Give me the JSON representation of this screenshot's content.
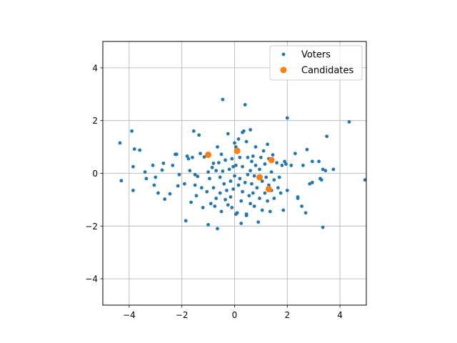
{
  "chart_data": {
    "type": "scatter",
    "xlim": [
      -5,
      5
    ],
    "ylim": [
      -5,
      5
    ],
    "x_ticks": [
      -4,
      -2,
      0,
      2,
      4
    ],
    "y_ticks": [
      -4,
      -2,
      0,
      2,
      4
    ],
    "x_tick_labels": [
      "−4",
      "−2",
      "0",
      "2",
      "4"
    ],
    "y_tick_labels": [
      "−4",
      "−2",
      "0",
      "2",
      "4"
    ],
    "grid": true,
    "legend_position": "top-right",
    "series": [
      {
        "name": "Voters",
        "color": "#1f77b4",
        "marker": "small-circle",
        "points": [
          [
            -4.35,
            1.15
          ],
          [
            -4.3,
            -0.28
          ],
          [
            -3.9,
            1.6
          ],
          [
            -3.85,
            0.25
          ],
          [
            -3.85,
            -0.65
          ],
          [
            -3.8,
            0.92
          ],
          [
            -3.6,
            0.88
          ],
          [
            -3.4,
            0.05
          ],
          [
            -3.35,
            -0.2
          ],
          [
            -3.1,
            0.3
          ],
          [
            -3.05,
            -0.45
          ],
          [
            -3.0,
            -0.15
          ],
          [
            -2.9,
            -0.75
          ],
          [
            -2.75,
            0.12
          ],
          [
            -2.7,
            0.38
          ],
          [
            -2.65,
            -0.98
          ],
          [
            -2.45,
            -0.78
          ],
          [
            -2.35,
            0.3
          ],
          [
            -2.25,
            0.72
          ],
          [
            -2.2,
            0.72
          ],
          [
            -2.15,
            -0.48
          ],
          [
            -2.1,
            -0.05
          ],
          [
            -1.9,
            -0.4
          ],
          [
            -1.85,
            -1.8
          ],
          [
            -1.8,
            0.65
          ],
          [
            -1.75,
            0.55
          ],
          [
            -1.7,
            0.1
          ],
          [
            -1.65,
            -1.1
          ],
          [
            -1.6,
            0.6
          ],
          [
            -1.55,
            1.6
          ],
          [
            -1.5,
            -0.05
          ],
          [
            -1.5,
            -0.45
          ],
          [
            -1.45,
            -0.85
          ],
          [
            -1.4,
            -0.12
          ],
          [
            -1.35,
            1.45
          ],
          [
            -1.3,
            0.75
          ],
          [
            -1.25,
            -0.55
          ],
          [
            -1.2,
            -1.3
          ],
          [
            -1.15,
            0.62
          ],
          [
            -1.05,
            -0.7
          ],
          [
            -1.0,
            -1.95
          ],
          [
            -1.0,
            0.05
          ],
          [
            -0.95,
            -0.2
          ],
          [
            -0.9,
            -1.15
          ],
          [
            -0.85,
            0.22
          ],
          [
            -0.8,
            0.38
          ],
          [
            -0.8,
            -0.55
          ],
          [
            -0.75,
            -1.25
          ],
          [
            -0.7,
            0.1
          ],
          [
            -0.7,
            -0.95
          ],
          [
            -0.65,
            -2.1
          ],
          [
            -0.65,
            1.0
          ],
          [
            -0.6,
            0.4
          ],
          [
            -0.55,
            -0.15
          ],
          [
            -0.55,
            -0.75
          ],
          [
            -0.5,
            0.72
          ],
          [
            -0.5,
            -1.45
          ],
          [
            -0.45,
            2.8
          ],
          [
            -0.45,
            0.08
          ],
          [
            -0.4,
            -0.4
          ],
          [
            -0.35,
            0.5
          ],
          [
            -0.35,
            -1.0
          ],
          [
            -0.3,
            -0.65
          ],
          [
            -0.25,
            1.5
          ],
          [
            -0.25,
            -1.2
          ],
          [
            -0.2,
            0.15
          ],
          [
            -0.15,
            -0.3
          ],
          [
            -0.15,
            -0.9
          ],
          [
            -0.1,
            0.55
          ],
          [
            -0.1,
            -1.3
          ],
          [
            -0.05,
            0.25
          ],
          [
            -0.05,
            -0.6
          ],
          [
            0.0,
            1.15
          ],
          [
            0.0,
            -0.1
          ],
          [
            0.05,
            1.0
          ],
          [
            0.05,
            -1.55
          ],
          [
            0.05,
            0.3
          ],
          [
            0.1,
            -1.5
          ],
          [
            0.15,
            1.3
          ],
          [
            0.15,
            -0.45
          ],
          [
            0.2,
            0.6
          ],
          [
            0.2,
            -0.2
          ],
          [
            0.25,
            -1.05
          ],
          [
            0.25,
            -1.9
          ],
          [
            0.3,
            1.55
          ],
          [
            0.3,
            0.25
          ],
          [
            0.3,
            -0.7
          ],
          [
            0.35,
            1.6
          ],
          [
            0.4,
            2.6
          ],
          [
            0.4,
            -0.35
          ],
          [
            0.45,
            1.2
          ],
          [
            0.45,
            -1.55
          ],
          [
            0.45,
            -1.6
          ],
          [
            0.5,
            0.6
          ],
          [
            0.5,
            -0.05
          ],
          [
            0.55,
            -0.85
          ],
          [
            0.6,
            1.65
          ],
          [
            0.6,
            0.1
          ],
          [
            0.6,
            -1.15
          ],
          [
            0.65,
            0.45
          ],
          [
            0.65,
            -0.4
          ],
          [
            0.7,
            -0.75
          ],
          [
            0.7,
            0.65
          ],
          [
            0.75,
            -1.25
          ],
          [
            0.75,
            -0.1
          ],
          [
            0.8,
            1.0
          ],
          [
            0.8,
            0.3
          ],
          [
            0.85,
            -0.55
          ],
          [
            0.9,
            -1.85
          ],
          [
            0.95,
            0.15
          ],
          [
            0.95,
            -0.95
          ],
          [
            1.0,
            0.6
          ],
          [
            1.05,
            -0.3
          ],
          [
            1.05,
            -1.4
          ],
          [
            1.1,
            0.85
          ],
          [
            1.15,
            0.35
          ],
          [
            1.15,
            -0.75
          ],
          [
            1.2,
            -0.15
          ],
          [
            1.25,
            1.1
          ],
          [
            1.25,
            -1.05
          ],
          [
            1.3,
            0.55
          ],
          [
            1.3,
            -0.45
          ],
          [
            1.35,
            -1.45
          ],
          [
            1.4,
            0.05
          ],
          [
            1.4,
            -0.65
          ],
          [
            1.45,
            0.7
          ],
          [
            1.5,
            -0.25
          ],
          [
            1.5,
            -0.95
          ],
          [
            1.6,
            0.4
          ],
          [
            1.65,
            -0.55
          ],
          [
            1.7,
            -0.15
          ],
          [
            1.75,
            -0.75
          ],
          [
            1.8,
            0.3
          ],
          [
            1.85,
            -1.4
          ],
          [
            1.9,
            0.45
          ],
          [
            1.95,
            0.35
          ],
          [
            2.0,
            2.1
          ],
          [
            2.0,
            -0.65
          ],
          [
            2.15,
            0.3
          ],
          [
            2.3,
            0.75
          ],
          [
            2.4,
            -0.9
          ],
          [
            2.4,
            -0.95
          ],
          [
            2.55,
            -1.25
          ],
          [
            2.6,
            0.3
          ],
          [
            2.7,
            -1.5
          ],
          [
            2.75,
            0.9
          ],
          [
            2.85,
            -0.4
          ],
          [
            2.95,
            0.45
          ],
          [
            2.95,
            -0.35
          ],
          [
            3.2,
            0.45
          ],
          [
            3.25,
            -0.2
          ],
          [
            3.3,
            -0.25
          ],
          [
            3.35,
            0.15
          ],
          [
            3.35,
            -2.05
          ],
          [
            3.45,
            0.1
          ],
          [
            3.5,
            1.4
          ],
          [
            3.75,
            0.15
          ],
          [
            4.35,
            1.95
          ],
          [
            4.95,
            -0.25
          ]
        ]
      },
      {
        "name": "Candidates",
        "color": "#ff7f0e",
        "marker": "large-circle",
        "points": [
          [
            -1.0,
            0.7
          ],
          [
            0.1,
            0.85
          ],
          [
            1.4,
            0.5
          ],
          [
            0.95,
            -0.15
          ],
          [
            1.3,
            -0.6
          ]
        ]
      }
    ]
  }
}
